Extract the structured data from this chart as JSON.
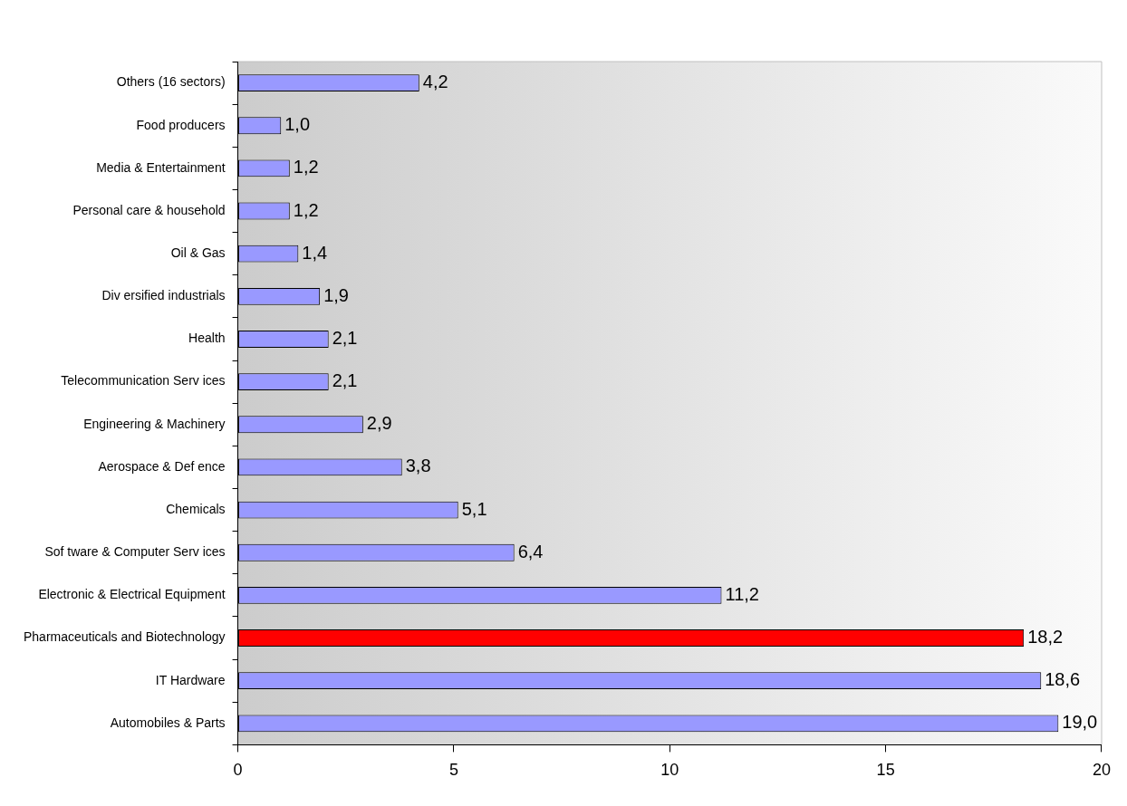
{
  "chart_data": {
    "type": "bar",
    "orientation": "horizontal",
    "categories": [
      "Others (16 sectors)",
      "Food producers",
      "Media & Entertainment",
      "Personal care & household",
      "Oil & Gas",
      "Div ersified industrials",
      "Health",
      "Telecommunication Serv ices",
      "Engineering & Machinery",
      "Aerospace & Def ence",
      "Chemicals",
      "Sof tware & Computer Serv ices",
      "Electronic & Electrical Equipment",
      "Pharmaceuticals and Biotechnology",
      "IT Hardware",
      "Automobiles & Parts"
    ],
    "values": [
      4.2,
      1.0,
      1.2,
      1.2,
      1.4,
      1.9,
      2.1,
      2.1,
      2.9,
      3.8,
      5.1,
      6.4,
      11.2,
      18.2,
      18.6,
      19.0
    ],
    "colors": [
      "#9999ff",
      "#9999ff",
      "#9999ff",
      "#9999ff",
      "#9999ff",
      "#9999ff",
      "#9999ff",
      "#9999ff",
      "#9999ff",
      "#9999ff",
      "#9999ff",
      "#9999ff",
      "#9999ff",
      "#ff0000",
      "#9999ff",
      "#9999ff"
    ],
    "value_labels": [
      "4,2",
      "1,0",
      "1,2",
      "1,2",
      "1,4",
      "1,9",
      "2,1",
      "2,1",
      "2,9",
      "3,8",
      "5,1",
      "6,4",
      "11,2",
      "18,2",
      "18,6",
      "19,0"
    ],
    "xlim": [
      0,
      20
    ],
    "xticks": [
      0,
      5,
      10,
      15,
      20
    ],
    "grid": false,
    "legend": false
  }
}
